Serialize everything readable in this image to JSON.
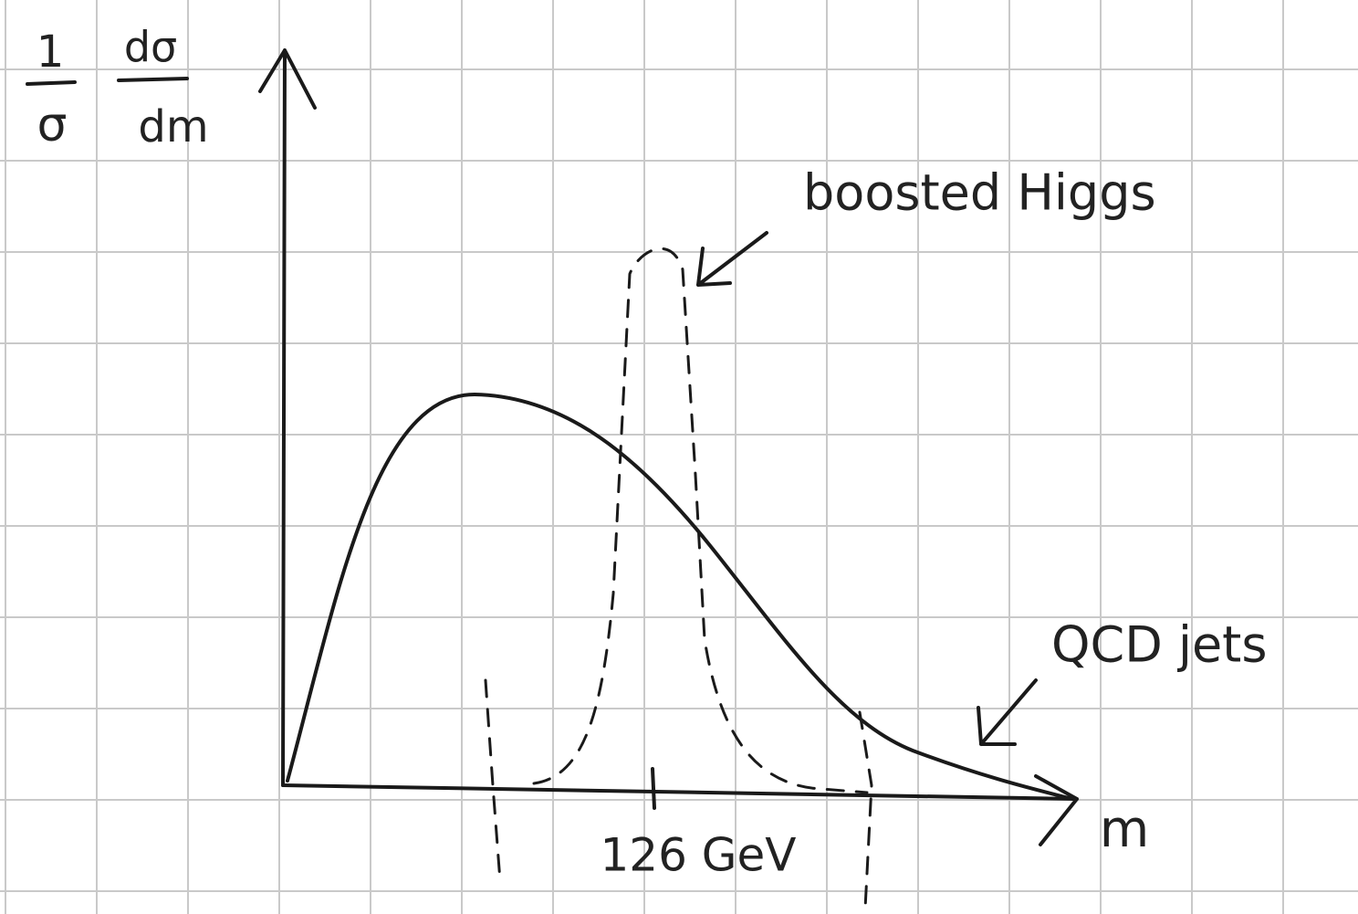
{
  "y_label": {
    "left": {
      "numerator": "1",
      "denominator": "σ"
    },
    "right": {
      "numerator": "dσ",
      "denominator": "dm"
    }
  },
  "x_label": "m",
  "tick_label": "126 GeV",
  "annotations": {
    "signal": "boosted Higgs",
    "background": "QCD jets"
  }
}
